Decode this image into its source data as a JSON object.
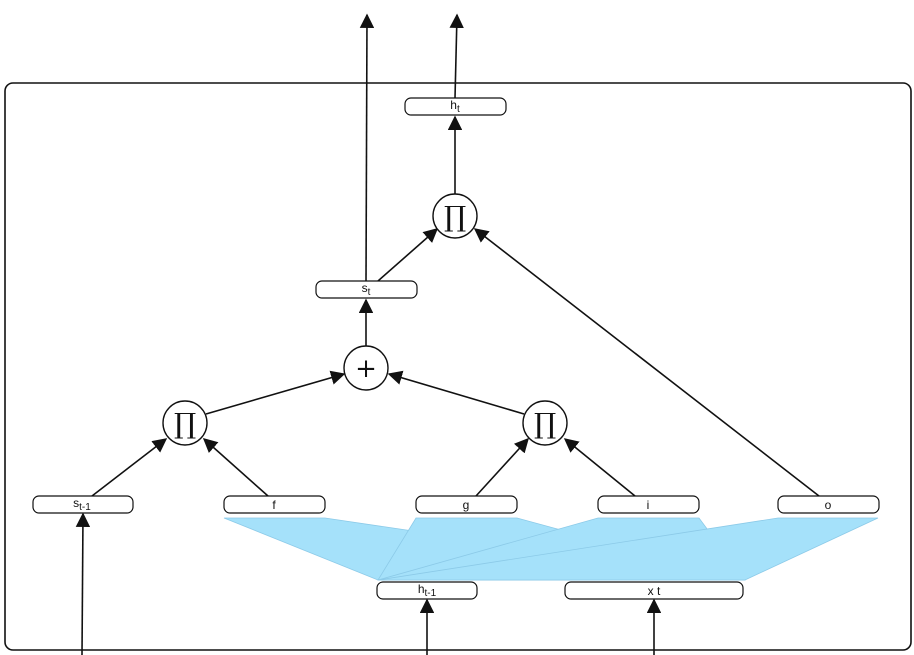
{
  "nodes": {
    "h_t": {
      "base": "h",
      "sub": "t"
    },
    "s_t": {
      "base": "s",
      "sub": "t"
    },
    "s_prev": {
      "base": "s",
      "sub": "t-1"
    },
    "f": {
      "base": "f",
      "sub": ""
    },
    "g": {
      "base": "g",
      "sub": ""
    },
    "i": {
      "base": "i",
      "sub": ""
    },
    "o": {
      "base": "o",
      "sub": ""
    },
    "h_prev": {
      "base": "h",
      "sub": "t-1"
    },
    "x_t": {
      "base": "x t",
      "sub": ""
    }
  },
  "operators": {
    "product_out": "∏",
    "product_forget": "∏",
    "product_input": "∏",
    "sum": "+"
  },
  "colors": {
    "stroke": "#111111",
    "fan_fill": "#5ccaf6",
    "fan_stroke": "#2f9fd6"
  }
}
